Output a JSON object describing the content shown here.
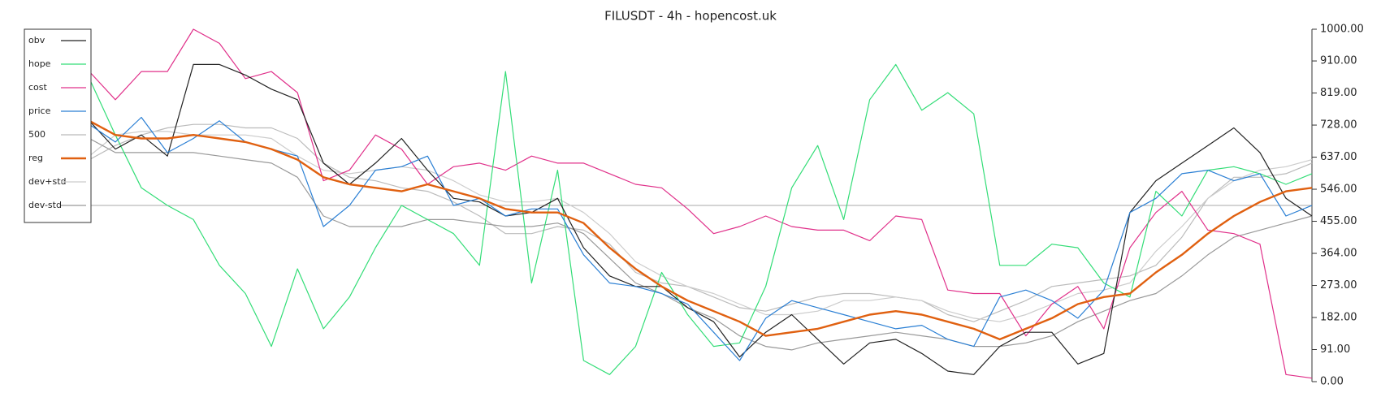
{
  "chart_data": {
    "type": "line",
    "title": "FILUSDT - 4h - hopencost.uk",
    "ylim": [
      0,
      1000
    ],
    "yticks": [
      {
        "value": 0,
        "label": "0.00"
      },
      {
        "value": 91,
        "label": "91.00"
      },
      {
        "value": 182,
        "label": "182.00"
      },
      {
        "value": 273,
        "label": "273.00"
      },
      {
        "value": 364,
        "label": "364.00"
      },
      {
        "value": 455,
        "label": "455.00"
      },
      {
        "value": 546,
        "label": "546.00"
      },
      {
        "value": 637,
        "label": "637.00"
      },
      {
        "value": 728,
        "label": "728.00"
      },
      {
        "value": 819,
        "label": "819.00"
      },
      {
        "value": 910,
        "label": "910.00"
      },
      {
        "value": 1000,
        "label": "1000.00"
      }
    ],
    "hline": 500,
    "hline_color": "#aaaaaa",
    "legend": "upper left",
    "y_axis_side": "right",
    "series": [
      {
        "name": "obv",
        "color": "#222222",
        "width": 1,
        "values": [
          740,
          660,
          700,
          640,
          900,
          900,
          870,
          830,
          800,
          620,
          560,
          620,
          690,
          600,
          520,
          510,
          470,
          480,
          520,
          380,
          300,
          270,
          270,
          210,
          170,
          70,
          140,
          190,
          120,
          50,
          110,
          120,
          80,
          30,
          20,
          100,
          140,
          140,
          50,
          80,
          480,
          570,
          620,
          670,
          720,
          650,
          520,
          470
        ]
      },
      {
        "name": "hope",
        "color": "#33dd77",
        "width": 1,
        "values": [
          860,
          700,
          550,
          500,
          460,
          330,
          250,
          100,
          320,
          150,
          240,
          380,
          500,
          460,
          420,
          330,
          880,
          280,
          600,
          60,
          20,
          100,
          310,
          190,
          100,
          110,
          270,
          550,
          670,
          460,
          800,
          900,
          770,
          820,
          760,
          330,
          330,
          390,
          380,
          280,
          240,
          540,
          470,
          600,
          610,
          590,
          560,
          590
        ]
      },
      {
        "name": "cost",
        "color": "#e0308a",
        "width": 1,
        "values": [
          880,
          800,
          880,
          880,
          1000,
          960,
          860,
          880,
          820,
          570,
          600,
          700,
          660,
          560,
          610,
          620,
          600,
          640,
          620,
          620,
          590,
          560,
          550,
          490,
          420,
          440,
          470,
          440,
          430,
          430,
          400,
          470,
          460,
          260,
          250,
          250,
          130,
          220,
          270,
          150,
          380,
          480,
          540,
          430,
          420,
          390,
          20,
          10
        ]
      },
      {
        "name": "price",
        "color": "#2a7fd4",
        "width": 1,
        "values": [
          730,
          680,
          750,
          650,
          690,
          740,
          680,
          660,
          640,
          440,
          500,
          600,
          610,
          640,
          500,
          520,
          470,
          490,
          490,
          360,
          280,
          270,
          250,
          220,
          140,
          60,
          180,
          230,
          210,
          190,
          170,
          150,
          160,
          120,
          100,
          240,
          260,
          230,
          180,
          260,
          480,
          520,
          590,
          600,
          570,
          590,
          470,
          500
        ]
      },
      {
        "name": "500",
        "color": "#bbbbbb",
        "width": 1,
        "values": [
          630,
          670,
          700,
          720,
          730,
          730,
          720,
          720,
          690,
          620,
          580,
          570,
          550,
          540,
          510,
          470,
          420,
          420,
          440,
          430,
          390,
          310,
          280,
          270,
          240,
          210,
          200,
          220,
          240,
          250,
          250,
          240,
          230,
          190,
          170,
          200,
          230,
          270,
          280,
          290,
          300,
          330,
          410,
          520,
          580,
          580,
          590,
          620
        ]
      },
      {
        "name": "reg",
        "color": "#e06010",
        "width": 2,
        "values": [
          740,
          700,
          690,
          690,
          700,
          690,
          680,
          660,
          630,
          580,
          560,
          550,
          540,
          560,
          540,
          520,
          490,
          480,
          480,
          450,
          380,
          320,
          270,
          230,
          200,
          170,
          130,
          140,
          150,
          170,
          190,
          200,
          190,
          170,
          150,
          120,
          150,
          180,
          220,
          240,
          250,
          310,
          360,
          420,
          470,
          510,
          540,
          550
        ]
      },
      {
        "name": "dev+std",
        "color": "#cccccc",
        "width": 1,
        "values": [
          640,
          700,
          710,
          710,
          700,
          700,
          700,
          690,
          640,
          600,
          590,
          600,
          610,
          600,
          570,
          530,
          510,
          510,
          520,
          480,
          420,
          340,
          300,
          270,
          250,
          220,
          190,
          190,
          200,
          230,
          230,
          240,
          230,
          200,
          180,
          170,
          190,
          220,
          250,
          260,
          280,
          370,
          440,
          520,
          570,
          600,
          610,
          630
        ]
      },
      {
        "name": "dev-std",
        "color": "#999999",
        "width": 1,
        "values": [
          690,
          650,
          650,
          650,
          650,
          640,
          630,
          620,
          580,
          470,
          440,
          440,
          440,
          460,
          460,
          450,
          440,
          440,
          450,
          420,
          350,
          280,
          250,
          210,
          180,
          130,
          100,
          90,
          110,
          120,
          130,
          140,
          130,
          120,
          100,
          100,
          110,
          130,
          170,
          200,
          230,
          250,
          300,
          360,
          410,
          430,
          450,
          470
        ]
      }
    ]
  }
}
